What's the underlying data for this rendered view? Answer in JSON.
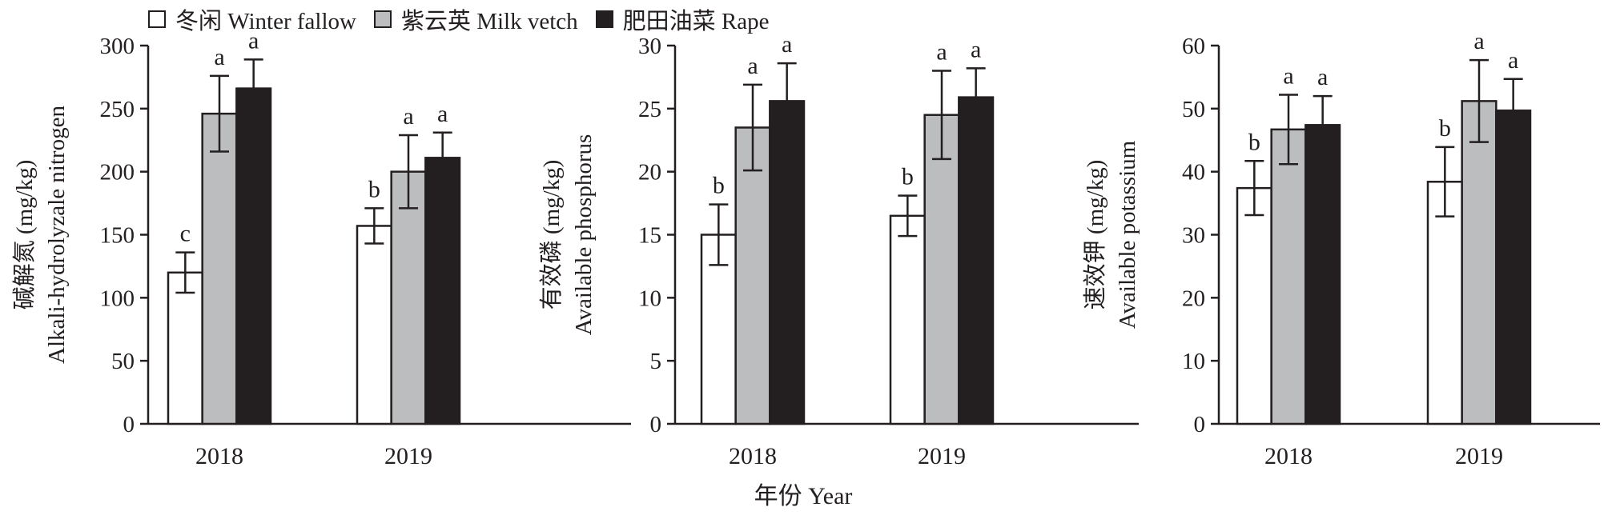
{
  "legend": {
    "items": [
      {
        "label": "冬闲 Winter fallow",
        "color": "#ffffff"
      },
      {
        "label": "紫云英 Milk vetch",
        "color": "#bcbdbf"
      },
      {
        "label": "肥田油菜 Rape",
        "color": "#231f20"
      }
    ]
  },
  "xlabel": "年份 Year",
  "chart_data": [
    {
      "type": "bar",
      "categories": [
        "2018",
        "2019"
      ],
      "ylabel_zh": "碱解氮 (mg/kg)",
      "ylabel_en": "Alkali-hydrolyzale nitrogen",
      "ylim": [
        0,
        300
      ],
      "yticks": [
        0,
        50,
        100,
        150,
        200,
        250,
        300
      ],
      "series": [
        {
          "name": "冬闲 Winter fallow",
          "values": [
            120,
            157
          ],
          "errors": [
            16,
            14
          ],
          "letters": [
            "c",
            "b"
          ],
          "color": "#ffffff"
        },
        {
          "name": "紫云英 Milk vetch",
          "values": [
            246,
            200
          ],
          "errors": [
            30,
            29
          ],
          "letters": [
            "a",
            "a"
          ],
          "color": "#bcbdbf"
        },
        {
          "name": "肥田油菜 Rape",
          "values": [
            266,
            211
          ],
          "errors": [
            23,
            20
          ],
          "letters": [
            "a",
            "a"
          ],
          "color": "#231f20"
        }
      ]
    },
    {
      "type": "bar",
      "categories": [
        "2018",
        "2019"
      ],
      "ylabel_zh": "有效磷 (mg/kg)",
      "ylabel_en": "Available phosphorus",
      "ylim": [
        0,
        30
      ],
      "yticks": [
        0,
        5,
        10,
        15,
        20,
        25,
        30
      ],
      "series": [
        {
          "name": "冬闲 Winter fallow",
          "values": [
            15.0,
            16.5
          ],
          "errors": [
            2.4,
            1.6
          ],
          "letters": [
            "b",
            "b"
          ],
          "color": "#ffffff"
        },
        {
          "name": "紫云英 Milk vetch",
          "values": [
            23.5,
            24.5
          ],
          "errors": [
            3.4,
            3.5
          ],
          "letters": [
            "a",
            "a"
          ],
          "color": "#bcbdbf"
        },
        {
          "name": "肥田油菜 Rape",
          "values": [
            25.6,
            25.9
          ],
          "errors": [
            3.0,
            2.3
          ],
          "letters": [
            "a",
            "a"
          ],
          "color": "#231f20"
        }
      ]
    },
    {
      "type": "bar",
      "categories": [
        "2018",
        "2019"
      ],
      "ylabel_zh": "速效钾 (mg/kg)",
      "ylabel_en": "Available potassium",
      "ylim": [
        0,
        60
      ],
      "yticks": [
        0,
        10,
        20,
        30,
        40,
        50,
        60
      ],
      "series": [
        {
          "name": "冬闲 Winter fallow",
          "values": [
            37.4,
            38.4
          ],
          "errors": [
            4.3,
            5.5
          ],
          "letters": [
            "b",
            "b"
          ],
          "color": "#ffffff"
        },
        {
          "name": "紫云英 Milk vetch",
          "values": [
            46.7,
            51.2
          ],
          "errors": [
            5.5,
            6.5
          ],
          "letters": [
            "a",
            "a"
          ],
          "color": "#bcbdbf"
        },
        {
          "name": "肥田油菜 Rape",
          "values": [
            47.4,
            49.7
          ],
          "errors": [
            4.6,
            5.0
          ],
          "letters": [
            "a",
            "a"
          ],
          "color": "#231f20"
        }
      ]
    }
  ]
}
